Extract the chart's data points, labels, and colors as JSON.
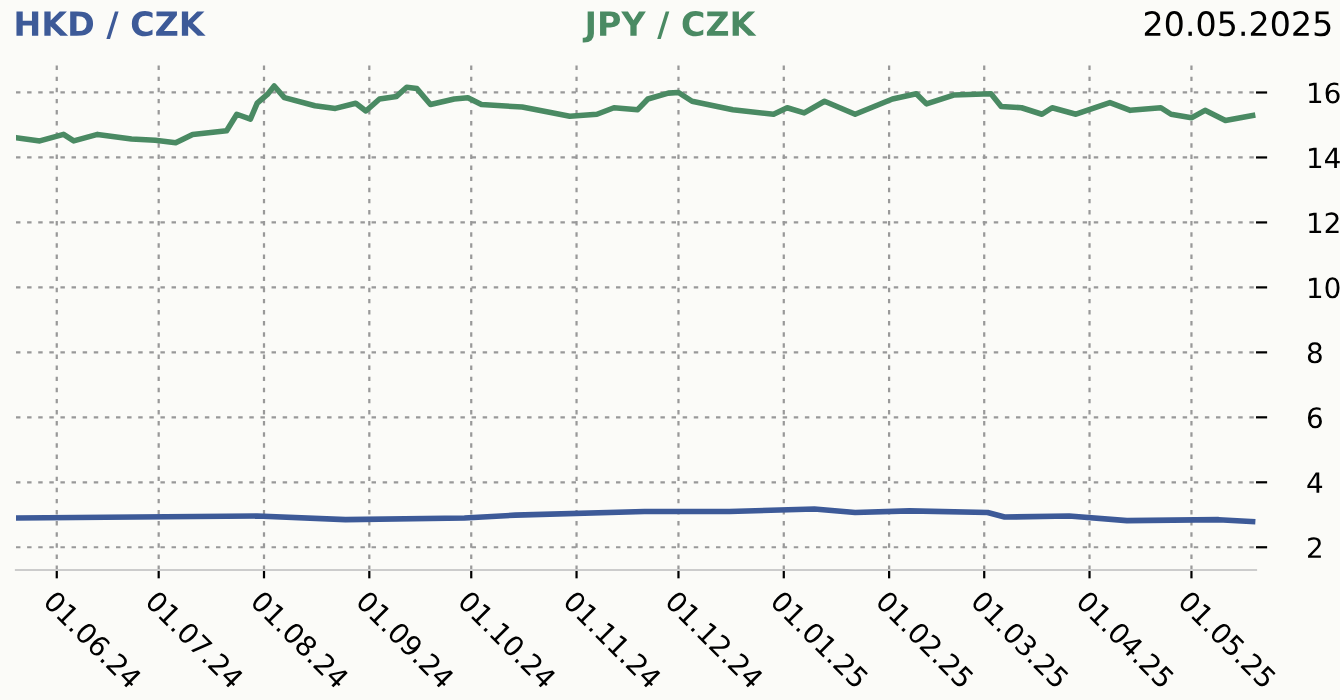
{
  "chart_data": {
    "type": "line",
    "annotations": [
      "20.05.2025"
    ],
    "xlim": [
      "2024-05-20",
      "2025-05-20"
    ],
    "xticks": [
      {
        "value": "2024-06-01",
        "label": "01.06.24"
      },
      {
        "value": "2024-07-01",
        "label": "01.07.24"
      },
      {
        "value": "2024-08-01",
        "label": "01.08.24"
      },
      {
        "value": "2024-09-01",
        "label": "01.09.24"
      },
      {
        "value": "2024-10-01",
        "label": "01.10.24"
      },
      {
        "value": "2024-11-01",
        "label": "01.11.24"
      },
      {
        "value": "2024-12-01",
        "label": "01.12.24"
      },
      {
        "value": "2025-01-01",
        "label": "01.01.25"
      },
      {
        "value": "2025-02-01",
        "label": "01.02.25"
      },
      {
        "value": "2025-03-01",
        "label": "01.03.25"
      },
      {
        "value": "2025-04-01",
        "label": "01.04.25"
      },
      {
        "value": "2025-05-01",
        "label": "01.05.25"
      }
    ],
    "ylim": [
      1.3,
      17
    ],
    "yticks": [
      2,
      4,
      6,
      8,
      10,
      12,
      14,
      16
    ],
    "grid": true,
    "line_style": "solid",
    "series": [
      {
        "name": "HKD / CZK",
        "color": "#3d5a98",
        "x": [
          "2024-05-20",
          "2024-07-30",
          "2024-08-25",
          "2024-09-29",
          "2024-10-14",
          "2024-11-21",
          "2024-12-16",
          "2025-01-10",
          "2025-01-22",
          "2025-02-07",
          "2025-03-02",
          "2025-03-07",
          "2025-03-26",
          "2025-04-12",
          "2025-05-09",
          "2025-05-19"
        ],
        "values": [
          2.9,
          2.96,
          2.85,
          2.9,
          2.99,
          3.1,
          3.1,
          3.18,
          3.07,
          3.12,
          3.07,
          2.93,
          2.96,
          2.82,
          2.85,
          2.79
        ]
      },
      {
        "name": "JPY / CZK",
        "color": "#4a8a63",
        "x": [
          "2024-05-20",
          "2024-05-27",
          "2024-06-03",
          "2024-06-06",
          "2024-06-13",
          "2024-06-23",
          "2024-06-30",
          "2024-07-06",
          "2024-07-11",
          "2024-07-21",
          "2024-07-24",
          "2024-07-28",
          "2024-07-30",
          "2024-08-02",
          "2024-08-04",
          "2024-08-07",
          "2024-08-16",
          "2024-08-22",
          "2024-08-28",
          "2024-08-31",
          "2024-09-04",
          "2024-09-09",
          "2024-09-12",
          "2024-09-15",
          "2024-09-19",
          "2024-09-26",
          "2024-09-30",
          "2024-10-04",
          "2024-10-16",
          "2024-10-24",
          "2024-10-30",
          "2024-11-07",
          "2024-11-12",
          "2024-11-19",
          "2024-11-22",
          "2024-11-28",
          "2024-12-01",
          "2024-12-05",
          "2024-12-17",
          "2024-12-29",
          "2025-01-02",
          "2025-01-07",
          "2025-01-13",
          "2025-01-22",
          "2025-02-02",
          "2025-02-09",
          "2025-02-12",
          "2025-02-20",
          "2025-03-03",
          "2025-03-06",
          "2025-03-12",
          "2025-03-18",
          "2025-03-21",
          "2025-03-28",
          "2025-04-07",
          "2025-04-13",
          "2025-04-22",
          "2025-04-25",
          "2025-05-01",
          "2025-05-05",
          "2025-05-11",
          "2025-05-19"
        ],
        "values": [
          14.61,
          14.51,
          14.71,
          14.51,
          14.71,
          14.57,
          14.53,
          14.45,
          14.71,
          14.82,
          15.33,
          15.18,
          15.67,
          15.94,
          16.2,
          15.84,
          15.59,
          15.51,
          15.67,
          15.43,
          15.8,
          15.88,
          16.16,
          16.12,
          15.63,
          15.8,
          15.84,
          15.63,
          15.55,
          15.39,
          15.27,
          15.33,
          15.53,
          15.47,
          15.8,
          15.98,
          16.0,
          15.73,
          15.47,
          15.33,
          15.53,
          15.37,
          15.73,
          15.33,
          15.8,
          15.96,
          15.65,
          15.92,
          15.96,
          15.57,
          15.53,
          15.33,
          15.53,
          15.33,
          15.69,
          15.45,
          15.53,
          15.33,
          15.22,
          15.45,
          15.14,
          15.29
        ]
      }
    ]
  }
}
